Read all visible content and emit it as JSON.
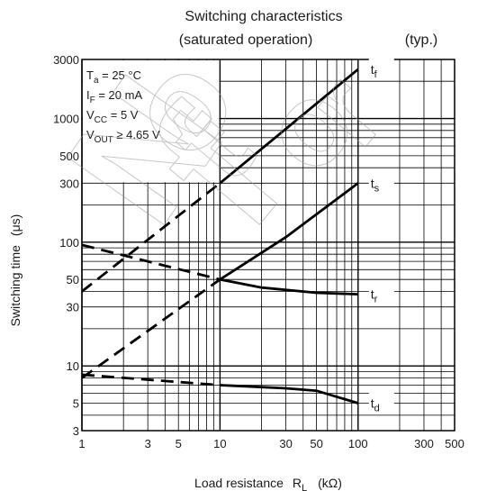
{
  "chart_data": {
    "type": "line",
    "title": "Switching characteristics",
    "subtitle": "(saturated operation)",
    "note": "(typ.)",
    "xlabel": "Load resistance",
    "xlabel_symbol": "R",
    "xlabel_symbol_sub": "L",
    "xlabel_unit": "(kΩ)",
    "ylabel": "Switching time",
    "ylabel_unit": "(μs)",
    "x_scale": "log",
    "y_scale": "log",
    "xlim": [
      1,
      500
    ],
    "ylim": [
      3,
      3000
    ],
    "grid": true,
    "x_ticks": [
      {
        "value": 1,
        "label": "1"
      },
      {
        "value": 3,
        "label": "3"
      },
      {
        "value": 5,
        "label": "5"
      },
      {
        "value": 10,
        "label": "10"
      },
      {
        "value": 30,
        "label": "30"
      },
      {
        "value": 50,
        "label": "50"
      },
      {
        "value": 100,
        "label": "100"
      },
      {
        "value": 300,
        "label": "300"
      },
      {
        "value": 500,
        "label": "500"
      }
    ],
    "y_ticks": [
      {
        "value": 3,
        "label": "3"
      },
      {
        "value": 5,
        "label": "5"
      },
      {
        "value": 10,
        "label": "10"
      },
      {
        "value": 30,
        "label": "30"
      },
      {
        "value": 50,
        "label": "50"
      },
      {
        "value": 100,
        "label": "100"
      },
      {
        "value": 300,
        "label": "300"
      },
      {
        "value": 500,
        "label": "500"
      },
      {
        "value": 1000,
        "label": "1000"
      },
      {
        "value": 3000,
        "label": "3000"
      }
    ],
    "conditions": [
      {
        "main": "T",
        "sub": "a",
        "rest": " = 25 °C"
      },
      {
        "main": "I",
        "sub": "F",
        "rest": " = 20 mA"
      },
      {
        "main": "V",
        "sub": "CC",
        "rest": " = 5 V"
      },
      {
        "main": "V",
        "sub": "OUT",
        "rest": " ≥ 4.65 V"
      }
    ],
    "series": [
      {
        "name": "tf",
        "main": "t",
        "sub": "f",
        "points": [
          [
            1,
            40
          ],
          [
            10,
            300
          ],
          [
            100,
            2500
          ]
        ],
        "dashed_until": 10
      },
      {
        "name": "ts",
        "main": "t",
        "sub": "s",
        "points": [
          [
            1,
            8
          ],
          [
            10,
            50
          ],
          [
            30,
            110
          ],
          [
            100,
            300
          ]
        ],
        "dashed_until": 10
      },
      {
        "name": "tr",
        "main": "t",
        "sub": "r",
        "points": [
          [
            1,
            95
          ],
          [
            10,
            50
          ],
          [
            20,
            43
          ],
          [
            50,
            39
          ],
          [
            100,
            38
          ]
        ],
        "dashed_until": 10
      },
      {
        "name": "td",
        "main": "t",
        "sub": "d",
        "points": [
          [
            1,
            8.5
          ],
          [
            10,
            7
          ],
          [
            30,
            6.6
          ],
          [
            50,
            6.3
          ],
          [
            100,
            5
          ]
        ],
        "dashed_until": 10
      }
    ],
    "watermark": "Not for"
  }
}
